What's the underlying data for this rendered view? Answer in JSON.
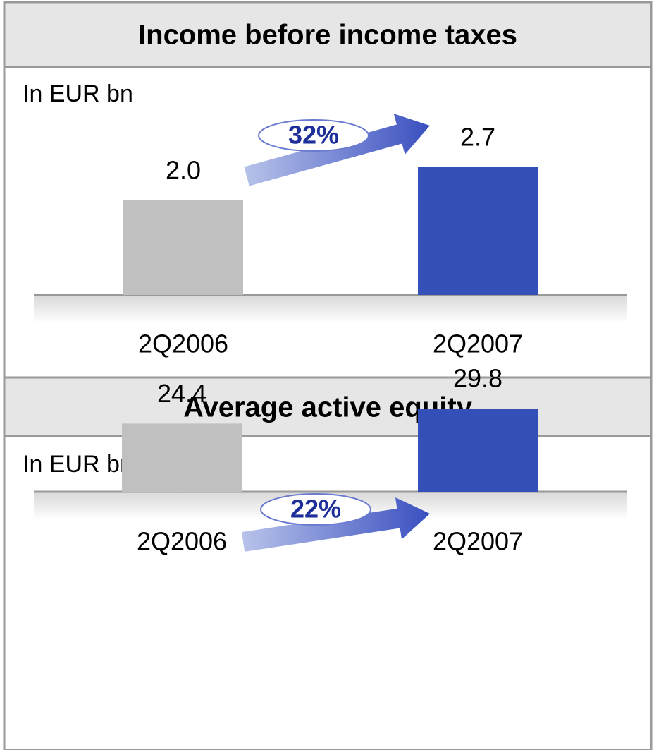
{
  "chart_data": [
    {
      "type": "bar",
      "title": "Income before income taxes",
      "subtitle": "In EUR bn",
      "categories": [
        "2Q2006",
        "2Q2007"
      ],
      "values": [
        2.0,
        2.7
      ],
      "value_labels": [
        "2.0",
        "2.7"
      ],
      "colors": [
        "#c0c0c0",
        "#354fb8"
      ],
      "annotation": "32%"
    },
    {
      "type": "bar",
      "title": "Average active equity",
      "subtitle": "In EUR bn",
      "categories": [
        "2Q2006",
        "2Q2007"
      ],
      "values": [
        24.4,
        29.8
      ],
      "value_labels": [
        "24.4",
        "29.8"
      ],
      "colors": [
        "#c0c0c0",
        "#354fb8"
      ],
      "annotation": "22%"
    }
  ]
}
